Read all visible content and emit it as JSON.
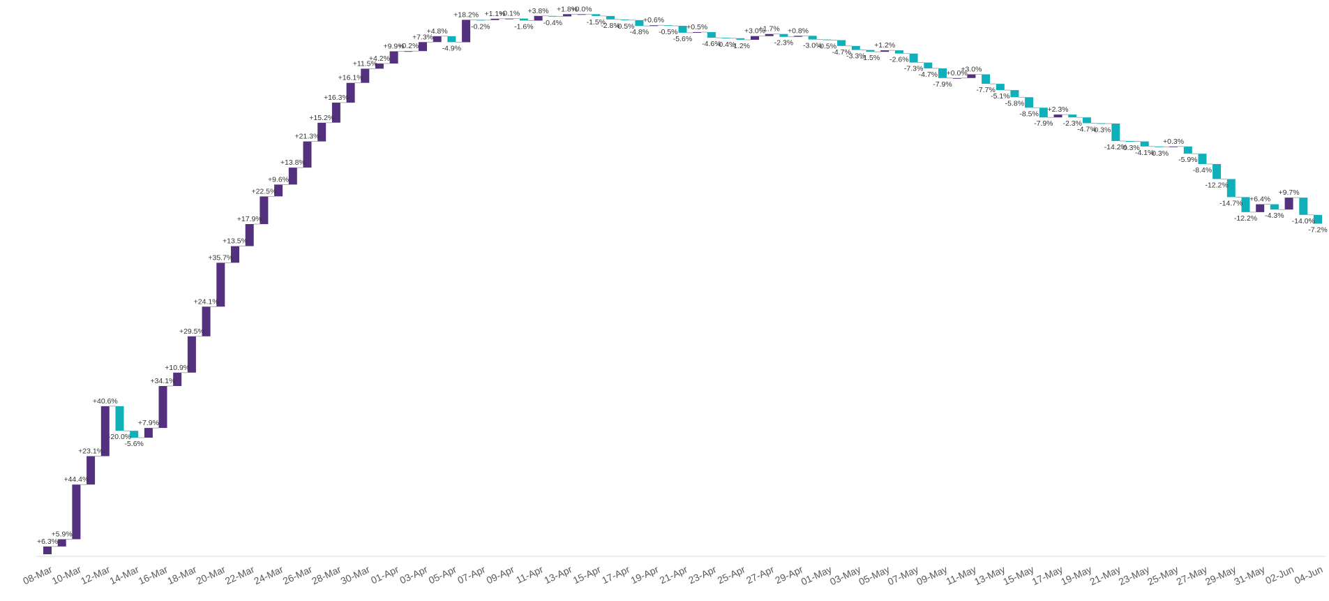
{
  "chart_data": {
    "type": "waterfall",
    "title": "",
    "xlabel": "",
    "ylabel": "",
    "grid": false,
    "legend": "none",
    "colors": {
      "increase": "#54317e",
      "decrease": "#0fb0b9",
      "connector": "#9a9a9a",
      "axis": "#d9d9d9"
    },
    "categories": [
      "08-Mar",
      "09-Mar",
      "10-Mar",
      "11-Mar",
      "12-Mar",
      "13-Mar",
      "14-Mar",
      "15-Mar",
      "16-Mar",
      "17-Mar",
      "18-Mar",
      "19-Mar",
      "20-Mar",
      "21-Mar",
      "22-Mar",
      "23-Mar",
      "24-Mar",
      "25-Mar",
      "26-Mar",
      "27-Mar",
      "28-Mar",
      "29-Mar",
      "30-Mar",
      "31-Mar",
      "01-Apr",
      "02-Apr",
      "03-Apr",
      "04-Apr",
      "05-Apr",
      "06-Apr",
      "07-Apr",
      "08-Apr",
      "09-Apr",
      "10-Apr",
      "11-Apr",
      "12-Apr",
      "13-Apr",
      "14-Apr",
      "15-Apr",
      "16-Apr",
      "17-Apr",
      "18-Apr",
      "19-Apr",
      "20-Apr",
      "21-Apr",
      "22-Apr",
      "23-Apr",
      "24-Apr",
      "25-Apr",
      "26-Apr",
      "27-Apr",
      "28-Apr",
      "29-Apr",
      "30-Apr",
      "01-May",
      "02-May",
      "03-May",
      "04-May",
      "05-May",
      "06-May",
      "07-May",
      "08-May",
      "09-May",
      "10-May",
      "11-May",
      "12-May",
      "13-May",
      "14-May",
      "15-May",
      "16-May",
      "17-May",
      "18-May",
      "19-May",
      "20-May",
      "21-May",
      "22-May",
      "23-May",
      "24-May",
      "25-May",
      "26-May",
      "27-May",
      "28-May",
      "29-May",
      "30-May",
      "31-May",
      "01-Jun",
      "02-Jun",
      "03-Jun",
      "04-Jun"
    ],
    "x_tick_labels": [
      "08-Mar",
      "10-Mar",
      "12-Mar",
      "14-Mar",
      "16-Mar",
      "18-Mar",
      "20-Mar",
      "22-Mar",
      "24-Mar",
      "26-Mar",
      "28-Mar",
      "30-Mar",
      "01-Apr",
      "03-Apr",
      "05-Apr",
      "07-Apr",
      "09-Apr",
      "11-Apr",
      "13-Apr",
      "15-Apr",
      "17-Apr",
      "19-Apr",
      "21-Apr",
      "23-Apr",
      "25-Apr",
      "27-Apr",
      "29-Apr",
      "01-May",
      "03-May",
      "05-May",
      "07-May",
      "09-May",
      "11-May",
      "13-May",
      "15-May",
      "17-May",
      "19-May",
      "21-May",
      "23-May",
      "25-May",
      "27-May",
      "29-May",
      "31-May",
      "02-Jun",
      "04-Jun"
    ],
    "values": [
      6.3,
      5.9,
      44.4,
      23.1,
      40.6,
      -20.0,
      -5.6,
      7.9,
      34.1,
      10.9,
      29.5,
      24.1,
      35.7,
      13.5,
      17.9,
      22.5,
      9.6,
      13.8,
      21.3,
      15.2,
      16.3,
      16.1,
      11.5,
      4.2,
      9.9,
      0.2,
      7.3,
      4.8,
      -4.9,
      18.2,
      -0.2,
      1.1,
      0.1,
      -1.6,
      3.8,
      -0.4,
      1.8,
      0.0,
      -1.5,
      -2.8,
      -0.5,
      -4.8,
      0.6,
      -0.5,
      -5.6,
      0.5,
      -4.6,
      -0.4,
      -1.2,
      3.0,
      1.7,
      -2.3,
      0.8,
      -3.0,
      -0.5,
      -4.7,
      -3.3,
      -1.5,
      1.2,
      -2.6,
      -7.3,
      -4.7,
      -7.9,
      0.0,
      3.0,
      -7.7,
      -5.1,
      -5.8,
      -8.5,
      -7.9,
      2.3,
      -2.3,
      -4.7,
      -0.3,
      -14.2,
      -0.3,
      -4.1,
      -0.3,
      0.3,
      -5.9,
      -8.4,
      -12.2,
      -14.7,
      -12.2,
      6.4,
      -4.3,
      9.7,
      -14.0,
      -7.2
    ],
    "labels": [
      "+6.3%",
      "+5.9%",
      "+44.4%",
      "+23.1%",
      "+40.6%",
      "-20.0%",
      "-5.6%",
      "+7.9%",
      "+34.1%",
      "+10.9%",
      "+29.5%",
      "+24.1%",
      "+35.7%",
      "+13.5%",
      "+17.9%",
      "+22.5%",
      "+9.6%",
      "+13.8%",
      "+21.3%",
      "+15.2%",
      "+16.3%",
      "+16.1%",
      "+11.5%",
      "+4.2%",
      "+9.9%",
      "+0.2%",
      "+7.3%",
      "+4.8%",
      "-4.9%",
      "+18.2%",
      "-0.2%",
      "+1.1%",
      "+0.1%",
      "-1.6%",
      "+3.8%",
      "-0.4%",
      "+1.8%",
      "+0.0%",
      "-1.5%",
      "-2.8%",
      "-0.5%",
      "-4.8%",
      "+0.6%",
      "-0.5%",
      "-5.6%",
      "+0.5%",
      "-4.6%",
      "-0.4%",
      "-1.2%",
      "+3.0%",
      "+1.7%",
      "-2.3%",
      "+0.8%",
      "-3.0%",
      "-0.5%",
      "-4.7%",
      "-3.3%",
      "-1.5%",
      "+1.2%",
      "-2.6%",
      "-7.3%",
      "-4.7%",
      "-7.9%",
      "+0.0%",
      "+3.0%",
      "-7.7%",
      "-5.1%",
      "-5.8%",
      "-8.5%",
      "-7.9%",
      "+2.3%",
      "-2.3%",
      "-4.7%",
      "-0.3%",
      "-14.2%",
      "-0.3%",
      "-4.1%",
      "-0.3%",
      "+0.3%",
      "-5.9%",
      "-8.4%",
      "-12.2%",
      "-14.7%",
      "-12.2%",
      "+6.4%",
      "-4.3%",
      "+9.7%",
      "-14.0%",
      "-7.2%"
    ]
  }
}
